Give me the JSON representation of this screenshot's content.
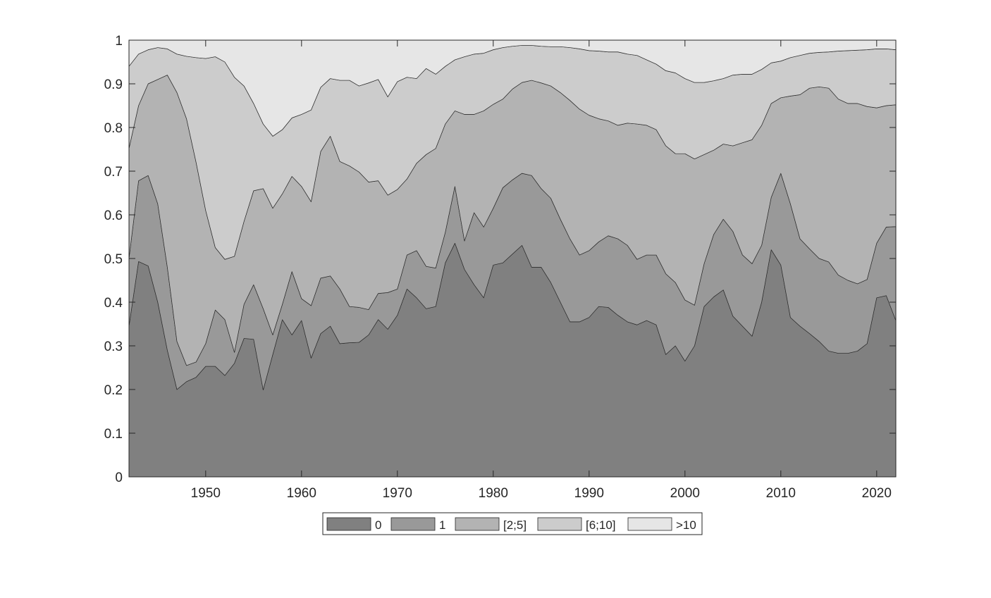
{
  "chart_data": {
    "type": "area",
    "stacked": true,
    "x": [
      1942,
      1943,
      1944,
      1945,
      1946,
      1947,
      1948,
      1949,
      1950,
      1951,
      1952,
      1953,
      1954,
      1955,
      1956,
      1957,
      1958,
      1959,
      1960,
      1961,
      1962,
      1963,
      1964,
      1965,
      1966,
      1967,
      1968,
      1969,
      1970,
      1971,
      1972,
      1973,
      1974,
      1975,
      1976,
      1977,
      1978,
      1979,
      1980,
      1981,
      1982,
      1983,
      1984,
      1985,
      1986,
      1987,
      1988,
      1989,
      1990,
      1991,
      1992,
      1993,
      1994,
      1995,
      1996,
      1997,
      1998,
      1999,
      2000,
      2001,
      2002,
      2003,
      2004,
      2005,
      2006,
      2007,
      2008,
      2009,
      2010,
      2011,
      2012,
      2013,
      2014,
      2015,
      2016,
      2017,
      2018,
      2019,
      2020,
      2021,
      2022
    ],
    "xlim": [
      1942,
      2022
    ],
    "ylim": [
      0,
      1
    ],
    "xticks": [
      1950,
      1960,
      1970,
      1980,
      1990,
      2000,
      2010,
      2020
    ],
    "yticks": [
      0,
      0.1,
      0.2,
      0.3,
      0.4,
      0.5,
      0.6,
      0.7,
      0.8,
      0.9,
      1
    ],
    "ytick_labels": [
      "0",
      "0.1",
      "0.2",
      "0.3",
      "0.4",
      "0.5",
      "0.6",
      "0.7",
      "0.8",
      "0.9",
      "1"
    ],
    "grid": false,
    "legend_position": "bottom-center, outside plot, horizontal",
    "cumulative_boundaries": [
      [
        0.345,
        0.493,
        0.483,
        0.4,
        0.29,
        0.2,
        0.218,
        0.228,
        0.253,
        0.253,
        0.232,
        0.26,
        0.317,
        0.315,
        0.199,
        0.28,
        0.36,
        0.325,
        0.358,
        0.272,
        0.328,
        0.345,
        0.305,
        0.307,
        0.308,
        0.325,
        0.36,
        0.338,
        0.37,
        0.43,
        0.41,
        0.385,
        0.39,
        0.49,
        0.535,
        0.475,
        0.44,
        0.41,
        0.485,
        0.49,
        0.51,
        0.53,
        0.48,
        0.48,
        0.445,
        0.4,
        0.355,
        0.355,
        0.365,
        0.39,
        0.388,
        0.37,
        0.355,
        0.348,
        0.358,
        0.348,
        0.28,
        0.3,
        0.265,
        0.3,
        0.39,
        0.412,
        0.428,
        0.368,
        0.345,
        0.322,
        0.4,
        0.52,
        0.485,
        0.365,
        0.345,
        0.328,
        0.31,
        0.288,
        0.283,
        0.283,
        0.288,
        0.305,
        0.41,
        0.415,
        0.358
      ],
      [
        0.5,
        0.678,
        0.69,
        0.625,
        0.48,
        0.31,
        0.255,
        0.263,
        0.305,
        0.382,
        0.36,
        0.285,
        0.395,
        0.44,
        0.385,
        0.325,
        0.395,
        0.47,
        0.408,
        0.392,
        0.455,
        0.46,
        0.43,
        0.39,
        0.388,
        0.383,
        0.42,
        0.422,
        0.43,
        0.508,
        0.518,
        0.482,
        0.478,
        0.56,
        0.665,
        0.54,
        0.605,
        0.572,
        0.615,
        0.662,
        0.68,
        0.695,
        0.69,
        0.66,
        0.638,
        0.59,
        0.545,
        0.508,
        0.518,
        0.538,
        0.552,
        0.545,
        0.53,
        0.498,
        0.508,
        0.508,
        0.465,
        0.445,
        0.405,
        0.393,
        0.488,
        0.555,
        0.59,
        0.562,
        0.508,
        0.488,
        0.53,
        0.64,
        0.695,
        0.625,
        0.545,
        0.522,
        0.5,
        0.492,
        0.462,
        0.45,
        0.442,
        0.452,
        0.535,
        0.572,
        0.573
      ],
      [
        0.752,
        0.85,
        0.9,
        0.91,
        0.92,
        0.88,
        0.82,
        0.72,
        0.61,
        0.525,
        0.498,
        0.505,
        0.585,
        0.655,
        0.66,
        0.615,
        0.648,
        0.688,
        0.665,
        0.63,
        0.745,
        0.78,
        0.722,
        0.712,
        0.698,
        0.675,
        0.678,
        0.645,
        0.658,
        0.682,
        0.718,
        0.738,
        0.752,
        0.808,
        0.838,
        0.83,
        0.83,
        0.838,
        0.853,
        0.865,
        0.888,
        0.903,
        0.908,
        0.902,
        0.895,
        0.88,
        0.862,
        0.842,
        0.828,
        0.82,
        0.815,
        0.805,
        0.81,
        0.808,
        0.805,
        0.795,
        0.758,
        0.74,
        0.74,
        0.728,
        0.738,
        0.748,
        0.762,
        0.758,
        0.765,
        0.772,
        0.805,
        0.855,
        0.868,
        0.872,
        0.875,
        0.89,
        0.893,
        0.89,
        0.865,
        0.855,
        0.855,
        0.848,
        0.845,
        0.85,
        0.852
      ],
      [
        0.94,
        0.968,
        0.978,
        0.983,
        0.98,
        0.968,
        0.963,
        0.96,
        0.958,
        0.962,
        0.95,
        0.915,
        0.895,
        0.855,
        0.808,
        0.78,
        0.795,
        0.822,
        0.83,
        0.84,
        0.892,
        0.912,
        0.908,
        0.908,
        0.895,
        0.902,
        0.91,
        0.87,
        0.905,
        0.915,
        0.912,
        0.935,
        0.922,
        0.94,
        0.955,
        0.962,
        0.968,
        0.97,
        0.978,
        0.983,
        0.986,
        0.988,
        0.988,
        0.986,
        0.985,
        0.985,
        0.983,
        0.98,
        0.976,
        0.975,
        0.973,
        0.973,
        0.968,
        0.965,
        0.955,
        0.945,
        0.93,
        0.925,
        0.912,
        0.903,
        0.903,
        0.907,
        0.912,
        0.92,
        0.922,
        0.922,
        0.933,
        0.948,
        0.952,
        0.96,
        0.965,
        0.97,
        0.972,
        0.973,
        0.975,
        0.976,
        0.977,
        0.978,
        0.98,
        0.98,
        0.978
      ],
      [
        1,
        1,
        1,
        1,
        1,
        1,
        1,
        1,
        1,
        1,
        1,
        1,
        1,
        1,
        1,
        1,
        1,
        1,
        1,
        1,
        1,
        1,
        1,
        1,
        1,
        1,
        1,
        1,
        1,
        1,
        1,
        1,
        1,
        1,
        1,
        1,
        1,
        1,
        1,
        1,
        1,
        1,
        1,
        1,
        1,
        1,
        1,
        1,
        1,
        1,
        1,
        1,
        1,
        1,
        1,
        1,
        1,
        1,
        1,
        1,
        1,
        1,
        1,
        1,
        1,
        1,
        1,
        1,
        1,
        1,
        1,
        1,
        1,
        1,
        1,
        1,
        1,
        1,
        1,
        1,
        1
      ]
    ],
    "series": [
      {
        "name": "0",
        "color": "#808080"
      },
      {
        "name": "1",
        "color": "#999999"
      },
      {
        "name": "[2;5]",
        "color": "#b3b3b3"
      },
      {
        "name": "[6;10]",
        "color": "#cccccc"
      },
      {
        "name": ">10",
        "color": "#e6e6e6"
      }
    ],
    "title": "",
    "xlabel": "",
    "ylabel": ""
  }
}
